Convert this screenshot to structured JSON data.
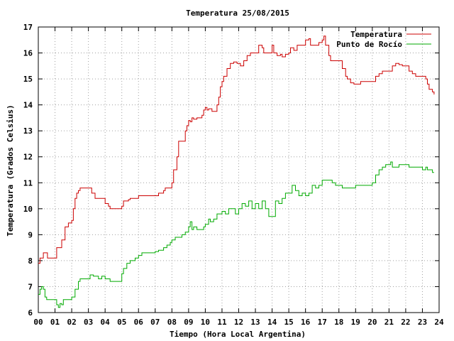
{
  "chart_data": {
    "type": "line",
    "title": "Temperatura 25/08/2015",
    "xlabel": "Tiempo (Hora Local Argentina)",
    "ylabel": "Temperatura (Grados Celsius)",
    "xlim": [
      0,
      24
    ],
    "ylim": [
      6,
      17
    ],
    "xticks": [
      "00",
      "01",
      "02",
      "03",
      "04",
      "05",
      "06",
      "07",
      "08",
      "09",
      "10",
      "11",
      "12",
      "13",
      "14",
      "15",
      "16",
      "17",
      "18",
      "19",
      "20",
      "21",
      "22",
      "23",
      "24"
    ],
    "yticks": [
      6,
      7,
      8,
      9,
      10,
      11,
      12,
      13,
      14,
      15,
      16,
      17
    ],
    "grid": true,
    "legend_position": "top-right",
    "series": [
      {
        "name": "Temperatura",
        "color": "#cc0000",
        "points": [
          [
            0.0,
            7.9
          ],
          [
            0.1,
            8.1
          ],
          [
            0.2,
            8.1
          ],
          [
            0.3,
            8.3
          ],
          [
            0.5,
            8.3
          ],
          [
            0.55,
            8.1
          ],
          [
            1.0,
            8.1
          ],
          [
            1.1,
            8.5
          ],
          [
            1.3,
            8.5
          ],
          [
            1.4,
            8.8
          ],
          [
            1.6,
            9.3
          ],
          [
            1.8,
            9.45
          ],
          [
            2.0,
            9.55
          ],
          [
            2.1,
            10.0
          ],
          [
            2.2,
            10.4
          ],
          [
            2.3,
            10.6
          ],
          [
            2.4,
            10.7
          ],
          [
            2.5,
            10.8
          ],
          [
            3.0,
            10.8
          ],
          [
            3.2,
            10.6
          ],
          [
            3.4,
            10.4
          ],
          [
            3.6,
            10.4
          ],
          [
            3.8,
            10.4
          ],
          [
            4.0,
            10.2
          ],
          [
            4.2,
            10.1
          ],
          [
            4.3,
            10.0
          ],
          [
            4.5,
            10.0
          ],
          [
            4.7,
            10.0
          ],
          [
            5.0,
            10.1
          ],
          [
            5.1,
            10.3
          ],
          [
            5.4,
            10.35
          ],
          [
            5.5,
            10.4
          ],
          [
            5.8,
            10.4
          ],
          [
            6.0,
            10.5
          ],
          [
            6.2,
            10.5
          ],
          [
            6.5,
            10.5
          ],
          [
            7.0,
            10.5
          ],
          [
            7.2,
            10.6
          ],
          [
            7.5,
            10.7
          ],
          [
            7.6,
            10.8
          ],
          [
            7.9,
            10.8
          ],
          [
            8.0,
            11.0
          ],
          [
            8.1,
            11.5
          ],
          [
            8.3,
            12.0
          ],
          [
            8.4,
            12.6
          ],
          [
            8.7,
            12.6
          ],
          [
            8.8,
            13.0
          ],
          [
            8.9,
            13.2
          ],
          [
            9.0,
            13.4
          ],
          [
            9.1,
            13.35
          ],
          [
            9.2,
            13.5
          ],
          [
            9.3,
            13.45
          ],
          [
            9.5,
            13.5
          ],
          [
            9.8,
            13.6
          ],
          [
            9.9,
            13.8
          ],
          [
            10.0,
            13.9
          ],
          [
            10.1,
            13.8
          ],
          [
            10.2,
            13.85
          ],
          [
            10.4,
            13.75
          ],
          [
            10.6,
            13.75
          ],
          [
            10.7,
            14.0
          ],
          [
            10.8,
            14.3
          ],
          [
            10.9,
            14.7
          ],
          [
            11.0,
            14.9
          ],
          [
            11.1,
            15.1
          ],
          [
            11.3,
            15.4
          ],
          [
            11.5,
            15.6
          ],
          [
            11.7,
            15.65
          ],
          [
            11.9,
            15.6
          ],
          [
            12.1,
            15.5
          ],
          [
            12.3,
            15.7
          ],
          [
            12.5,
            15.9
          ],
          [
            12.7,
            16.0
          ],
          [
            13.0,
            16.0
          ],
          [
            13.2,
            16.3
          ],
          [
            13.4,
            16.2
          ],
          [
            13.5,
            16.0
          ],
          [
            13.8,
            16.0
          ],
          [
            14.0,
            16.3
          ],
          [
            14.1,
            16.0
          ],
          [
            14.3,
            15.9
          ],
          [
            14.5,
            15.95
          ],
          [
            14.6,
            15.85
          ],
          [
            14.8,
            15.95
          ],
          [
            15.0,
            16.0
          ],
          [
            15.1,
            16.2
          ],
          [
            15.3,
            16.1
          ],
          [
            15.5,
            16.3
          ],
          [
            15.8,
            16.3
          ],
          [
            16.0,
            16.5
          ],
          [
            16.2,
            16.55
          ],
          [
            16.3,
            16.3
          ],
          [
            16.6,
            16.3
          ],
          [
            16.8,
            16.4
          ],
          [
            17.0,
            16.5
          ],
          [
            17.1,
            16.65
          ],
          [
            17.2,
            16.3
          ],
          [
            17.4,
            15.9
          ],
          [
            17.5,
            15.7
          ],
          [
            17.8,
            15.7
          ],
          [
            18.0,
            15.7
          ],
          [
            18.2,
            15.4
          ],
          [
            18.4,
            15.1
          ],
          [
            18.5,
            15.0
          ],
          [
            18.7,
            14.85
          ],
          [
            18.9,
            14.8
          ],
          [
            19.1,
            14.8
          ],
          [
            19.3,
            14.9
          ],
          [
            19.6,
            14.9
          ],
          [
            19.9,
            14.9
          ],
          [
            20.0,
            14.9
          ],
          [
            20.2,
            15.1
          ],
          [
            20.4,
            15.2
          ],
          [
            20.6,
            15.3
          ],
          [
            21.0,
            15.3
          ],
          [
            21.2,
            15.5
          ],
          [
            21.4,
            15.6
          ],
          [
            21.6,
            15.55
          ],
          [
            21.8,
            15.5
          ],
          [
            22.0,
            15.5
          ],
          [
            22.2,
            15.3
          ],
          [
            22.4,
            15.2
          ],
          [
            22.6,
            15.1
          ],
          [
            22.9,
            15.1
          ],
          [
            23.1,
            15.1
          ],
          [
            23.2,
            15.0
          ],
          [
            23.3,
            14.8
          ],
          [
            23.4,
            14.6
          ],
          [
            23.6,
            14.5
          ],
          [
            23.7,
            14.4
          ]
        ]
      },
      {
        "name": "Punto de Rocío",
        "color": "#00aa00",
        "points": [
          [
            0.0,
            6.7
          ],
          [
            0.1,
            6.9
          ],
          [
            0.2,
            7.0
          ],
          [
            0.3,
            6.9
          ],
          [
            0.4,
            6.6
          ],
          [
            0.5,
            6.5
          ],
          [
            0.8,
            6.5
          ],
          [
            1.0,
            6.5
          ],
          [
            1.1,
            6.3
          ],
          [
            1.2,
            6.2
          ],
          [
            1.3,
            6.35
          ],
          [
            1.4,
            6.3
          ],
          [
            1.5,
            6.5
          ],
          [
            1.8,
            6.5
          ],
          [
            2.0,
            6.6
          ],
          [
            2.2,
            6.9
          ],
          [
            2.4,
            7.2
          ],
          [
            2.5,
            7.3
          ],
          [
            2.8,
            7.3
          ],
          [
            3.0,
            7.3
          ],
          [
            3.1,
            7.45
          ],
          [
            3.3,
            7.4
          ],
          [
            3.5,
            7.4
          ],
          [
            3.6,
            7.3
          ],
          [
            3.8,
            7.4
          ],
          [
            4.0,
            7.3
          ],
          [
            4.3,
            7.2
          ],
          [
            4.6,
            7.2
          ],
          [
            4.8,
            7.2
          ],
          [
            5.0,
            7.5
          ],
          [
            5.1,
            7.7
          ],
          [
            5.3,
            7.9
          ],
          [
            5.5,
            8.0
          ],
          [
            5.8,
            8.1
          ],
          [
            6.0,
            8.2
          ],
          [
            6.2,
            8.3
          ],
          [
            6.5,
            8.3
          ],
          [
            6.8,
            8.3
          ],
          [
            7.0,
            8.35
          ],
          [
            7.2,
            8.4
          ],
          [
            7.5,
            8.5
          ],
          [
            7.7,
            8.6
          ],
          [
            7.9,
            8.7
          ],
          [
            8.0,
            8.8
          ],
          [
            8.2,
            8.9
          ],
          [
            8.4,
            8.9
          ],
          [
            8.6,
            9.0
          ],
          [
            8.8,
            9.1
          ],
          [
            9.0,
            9.3
          ],
          [
            9.1,
            9.5
          ],
          [
            9.2,
            9.2
          ],
          [
            9.3,
            9.3
          ],
          [
            9.5,
            9.2
          ],
          [
            9.7,
            9.2
          ],
          [
            9.9,
            9.3
          ],
          [
            10.0,
            9.4
          ],
          [
            10.2,
            9.6
          ],
          [
            10.3,
            9.5
          ],
          [
            10.5,
            9.6
          ],
          [
            10.7,
            9.8
          ],
          [
            10.9,
            9.8
          ],
          [
            11.0,
            9.9
          ],
          [
            11.2,
            9.8
          ],
          [
            11.4,
            10.0
          ],
          [
            11.6,
            10.0
          ],
          [
            11.8,
            9.8
          ],
          [
            12.0,
            10.0
          ],
          [
            12.2,
            10.2
          ],
          [
            12.4,
            10.1
          ],
          [
            12.6,
            10.3
          ],
          [
            12.8,
            10.0
          ],
          [
            13.0,
            10.2
          ],
          [
            13.2,
            10.0
          ],
          [
            13.4,
            10.3
          ],
          [
            13.6,
            10.0
          ],
          [
            13.8,
            9.7
          ],
          [
            14.0,
            9.7
          ],
          [
            14.2,
            10.3
          ],
          [
            14.4,
            10.2
          ],
          [
            14.6,
            10.4
          ],
          [
            14.8,
            10.6
          ],
          [
            15.0,
            10.6
          ],
          [
            15.2,
            10.9
          ],
          [
            15.4,
            10.7
          ],
          [
            15.6,
            10.5
          ],
          [
            15.8,
            10.6
          ],
          [
            16.0,
            10.5
          ],
          [
            16.2,
            10.6
          ],
          [
            16.4,
            10.9
          ],
          [
            16.6,
            10.8
          ],
          [
            16.8,
            10.9
          ],
          [
            17.0,
            11.1
          ],
          [
            17.2,
            11.1
          ],
          [
            17.4,
            11.1
          ],
          [
            17.6,
            11.0
          ],
          [
            17.8,
            10.9
          ],
          [
            18.0,
            10.9
          ],
          [
            18.2,
            10.8
          ],
          [
            18.4,
            10.8
          ],
          [
            18.6,
            10.8
          ],
          [
            18.8,
            10.8
          ],
          [
            19.0,
            10.9
          ],
          [
            19.3,
            10.9
          ],
          [
            19.6,
            10.9
          ],
          [
            19.9,
            10.9
          ],
          [
            20.0,
            11.0
          ],
          [
            20.2,
            11.3
          ],
          [
            20.4,
            11.5
          ],
          [
            20.6,
            11.6
          ],
          [
            20.8,
            11.7
          ],
          [
            21.0,
            11.7
          ],
          [
            21.1,
            11.8
          ],
          [
            21.2,
            11.6
          ],
          [
            21.4,
            11.6
          ],
          [
            21.6,
            11.7
          ],
          [
            21.8,
            11.7
          ],
          [
            22.0,
            11.7
          ],
          [
            22.2,
            11.6
          ],
          [
            22.4,
            11.6
          ],
          [
            22.6,
            11.6
          ],
          [
            22.8,
            11.6
          ],
          [
            23.0,
            11.5
          ],
          [
            23.1,
            11.5
          ],
          [
            23.2,
            11.6
          ],
          [
            23.3,
            11.5
          ],
          [
            23.5,
            11.5
          ],
          [
            23.6,
            11.4
          ],
          [
            23.7,
            11.4
          ]
        ]
      }
    ]
  }
}
